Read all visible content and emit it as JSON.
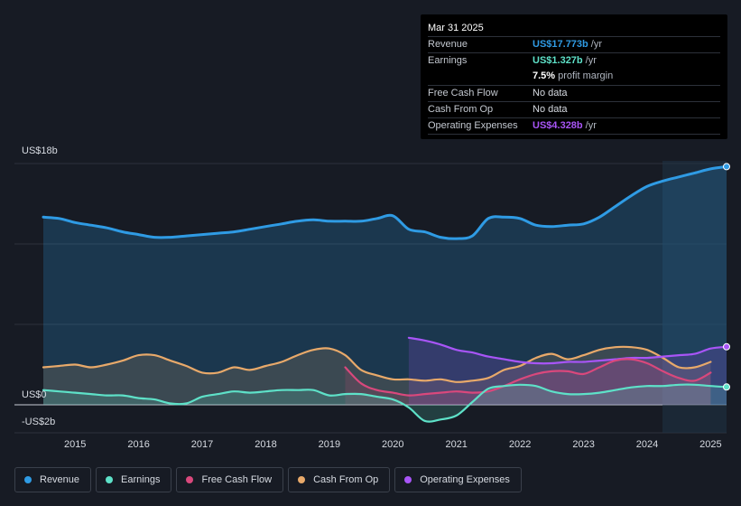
{
  "tooltip": {
    "date": "Mar 31 2025",
    "rows": [
      {
        "label": "Revenue",
        "value": "US$17.773b",
        "unit": "/yr",
        "color": "#2f9be4"
      },
      {
        "label": "Earnings",
        "value": "US$1.327b",
        "unit": "/yr",
        "color": "#5ee1c8"
      },
      {
        "label": "",
        "value": "7.5%",
        "unit": "profit margin",
        "color": "#ffffff"
      },
      {
        "label": "Free Cash Flow",
        "value": "No data",
        "unit": "",
        "color": "#6c727d"
      },
      {
        "label": "Cash From Op",
        "value": "No data",
        "unit": "",
        "color": "#6c727d"
      },
      {
        "label": "Operating Expenses",
        "value": "US$4.328b",
        "unit": "/yr",
        "color": "#a855f7"
      }
    ]
  },
  "legend": [
    {
      "label": "Revenue",
      "color": "#2f9be4"
    },
    {
      "label": "Earnings",
      "color": "#5ee1c8"
    },
    {
      "label": "Free Cash Flow",
      "color": "#d9487c"
    },
    {
      "label": "Cash From Op",
      "color": "#e8a96a"
    },
    {
      "label": "Operating Expenses",
      "color": "#a855f7"
    }
  ],
  "chart_data": {
    "type": "line",
    "title": "",
    "xlabel": "",
    "ylabel": "",
    "y_axis_labels": [
      "US$18b",
      "US$0",
      "-US$2b"
    ],
    "x_tick_labels": [
      "2015",
      "2016",
      "2017",
      "2018",
      "2019",
      "2020",
      "2021",
      "2022",
      "2023",
      "2024",
      "2025"
    ],
    "x_range": [
      2014.5,
      2025.25
    ],
    "ylim": [
      -2,
      18
    ],
    "series": [
      {
        "name": "Revenue",
        "color": "#2f9be4",
        "x": [
          2014.5,
          2014.75,
          2015,
          2015.25,
          2015.5,
          2015.75,
          2016,
          2016.25,
          2016.5,
          2016.75,
          2017,
          2017.25,
          2017.5,
          2017.75,
          2018,
          2018.25,
          2018.5,
          2018.75,
          2019,
          2019.25,
          2019.5,
          2019.75,
          2020,
          2020.25,
          2020.5,
          2020.75,
          2021,
          2021.25,
          2021.5,
          2021.75,
          2022,
          2022.25,
          2022.5,
          2022.75,
          2023,
          2023.25,
          2023.5,
          2023.75,
          2024,
          2024.25,
          2024.5,
          2024.75,
          2025,
          2025.25
        ],
        "y": [
          14.0,
          13.9,
          13.6,
          13.4,
          13.2,
          12.9,
          12.7,
          12.5,
          12.5,
          12.6,
          12.7,
          12.8,
          12.9,
          13.1,
          13.3,
          13.5,
          13.7,
          13.8,
          13.7,
          13.7,
          13.7,
          13.9,
          14.1,
          13.1,
          12.9,
          12.5,
          12.4,
          12.6,
          13.9,
          14.0,
          13.9,
          13.4,
          13.3,
          13.4,
          13.5,
          14.0,
          14.8,
          15.6,
          16.3,
          16.7,
          17.0,
          17.3,
          17.6,
          17.773
        ]
      },
      {
        "name": "Earnings",
        "color": "#5ee1c8",
        "x": [
          2014.5,
          2014.75,
          2015,
          2015.25,
          2015.5,
          2015.75,
          2016,
          2016.25,
          2016.5,
          2016.75,
          2017,
          2017.25,
          2017.5,
          2017.75,
          2018,
          2018.25,
          2018.5,
          2018.75,
          2019,
          2019.25,
          2019.5,
          2019.75,
          2020,
          2020.25,
          2020.5,
          2020.75,
          2021,
          2021.25,
          2021.5,
          2021.75,
          2022,
          2022.25,
          2022.5,
          2022.75,
          2023,
          2023.25,
          2023.5,
          2023.75,
          2024,
          2024.25,
          2024.5,
          2024.75,
          2025,
          2025.25
        ],
        "y": [
          1.1,
          1.0,
          0.9,
          0.8,
          0.7,
          0.7,
          0.5,
          0.4,
          0.1,
          0.1,
          0.6,
          0.8,
          1.0,
          0.9,
          1.0,
          1.1,
          1.1,
          1.1,
          0.7,
          0.8,
          0.8,
          0.6,
          0.4,
          -0.2,
          -1.2,
          -1.1,
          -0.8,
          0.2,
          1.2,
          1.4,
          1.5,
          1.4,
          1.0,
          0.8,
          0.8,
          0.9,
          1.1,
          1.3,
          1.4,
          1.4,
          1.5,
          1.5,
          1.4,
          1.327
        ]
      },
      {
        "name": "Free Cash Flow",
        "color": "#d9487c",
        "x": [
          2019.25,
          2019.5,
          2019.75,
          2020,
          2020.25,
          2020.5,
          2020.75,
          2021,
          2021.25,
          2021.5,
          2021.75,
          2022,
          2022.25,
          2022.5,
          2022.75,
          2023,
          2023.25,
          2023.5,
          2023.75,
          2024,
          2024.25,
          2024.5,
          2024.75,
          2025
        ],
        "y": [
          2.8,
          1.6,
          1.1,
          0.9,
          0.7,
          0.8,
          0.9,
          1.0,
          0.9,
          1.0,
          1.4,
          1.9,
          2.3,
          2.5,
          2.5,
          2.3,
          2.8,
          3.3,
          3.4,
          3.1,
          2.5,
          2.0,
          1.8,
          2.4
        ]
      },
      {
        "name": "Cash From Op",
        "color": "#e8a96a",
        "x": [
          2014.5,
          2014.75,
          2015,
          2015.25,
          2015.5,
          2015.75,
          2016,
          2016.25,
          2016.5,
          2016.75,
          2017,
          2017.25,
          2017.5,
          2017.75,
          2018,
          2018.25,
          2018.5,
          2018.75,
          2019,
          2019.25,
          2019.5,
          2019.75,
          2020,
          2020.25,
          2020.5,
          2020.75,
          2021,
          2021.25,
          2021.5,
          2021.75,
          2022,
          2022.25,
          2022.5,
          2022.75,
          2023,
          2023.25,
          2023.5,
          2023.75,
          2024,
          2024.25,
          2024.5,
          2024.75,
          2025
        ],
        "y": [
          2.8,
          2.9,
          3.0,
          2.8,
          3.0,
          3.3,
          3.7,
          3.7,
          3.3,
          2.9,
          2.4,
          2.4,
          2.8,
          2.6,
          2.9,
          3.2,
          3.7,
          4.1,
          4.2,
          3.7,
          2.6,
          2.2,
          1.9,
          1.9,
          1.8,
          1.9,
          1.7,
          1.8,
          2.0,
          2.6,
          2.9,
          3.5,
          3.8,
          3.4,
          3.7,
          4.1,
          4.3,
          4.3,
          4.1,
          3.5,
          2.8,
          2.8,
          3.2
        ]
      },
      {
        "name": "Operating Expenses",
        "color": "#a855f7",
        "x": [
          2020.25,
          2020.5,
          2020.75,
          2021,
          2021.25,
          2021.5,
          2021.75,
          2022,
          2022.25,
          2022.5,
          2022.75,
          2023,
          2023.25,
          2023.5,
          2023.75,
          2024,
          2024.25,
          2024.5,
          2024.75,
          2025,
          2025.25
        ],
        "y": [
          5.0,
          4.8,
          4.5,
          4.1,
          3.9,
          3.6,
          3.4,
          3.2,
          3.1,
          3.1,
          3.2,
          3.2,
          3.3,
          3.4,
          3.5,
          3.5,
          3.6,
          3.7,
          3.8,
          4.2,
          4.328
        ]
      }
    ]
  }
}
